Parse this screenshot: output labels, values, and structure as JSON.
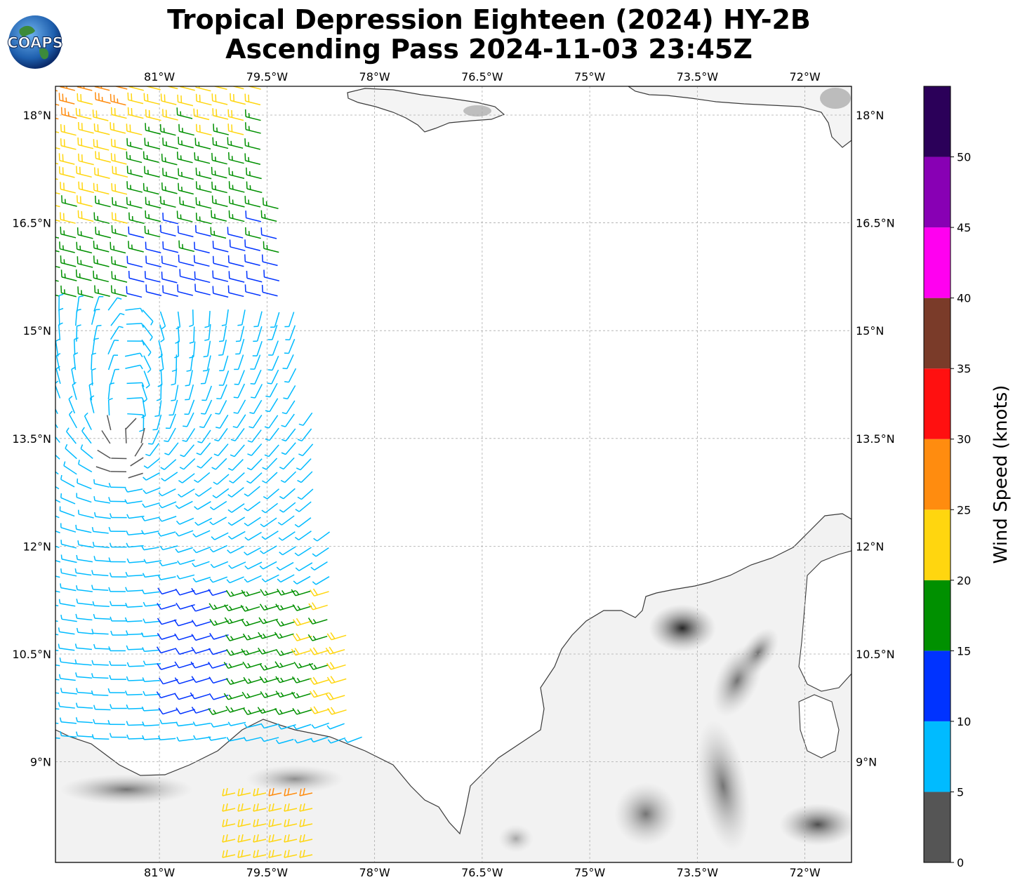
{
  "title": {
    "line1": "Tropical Depression Eighteen (2024) HY-2B",
    "line2": "Ascending Pass 2024-11-03 23:45Z"
  },
  "logo": {
    "text": "COAPS",
    "icon": "globe-icon"
  },
  "map": {
    "lon_labels": [
      "81°W",
      "79.5°W",
      "78°W",
      "76.5°W",
      "75°W",
      "73.5°W",
      "72°W"
    ],
    "lat_labels": [
      "18°N",
      "16.5°N",
      "15°N",
      "13.5°N",
      "12°N",
      "10.5°N",
      "9°N"
    ],
    "lon_values": [
      -81,
      -79.5,
      -78,
      -76.5,
      -75,
      -73.5,
      -72
    ],
    "lat_values": [
      18,
      16.5,
      15,
      13.5,
      12,
      10.5,
      9
    ],
    "extent": {
      "lon_min": -82.45,
      "lon_max": -71.35,
      "lat_min": 7.6,
      "lat_max": 18.4
    },
    "gridlines": true
  },
  "colorbar": {
    "label": "Wind Speed (knots)",
    "ticks": [
      "0",
      "5",
      "10",
      "15",
      "20",
      "25",
      "30",
      "35",
      "40",
      "45",
      "50"
    ],
    "bins": [
      {
        "min": 0,
        "max": 5,
        "color": "#555555"
      },
      {
        "min": 5,
        "max": 10,
        "color": "#00bbff"
      },
      {
        "min": 10,
        "max": 15,
        "color": "#0033ff"
      },
      {
        "min": 15,
        "max": 20,
        "color": "#009000"
      },
      {
        "min": 20,
        "max": 25,
        "color": "#ffd60f"
      },
      {
        "min": 25,
        "max": 30,
        "color": "#ff8c0f"
      },
      {
        "min": 30,
        "max": 35,
        "color": "#ff1010"
      },
      {
        "min": 35,
        "max": 40,
        "color": "#7a3b29"
      },
      {
        "min": 40,
        "max": 45,
        "color": "#ff00f0"
      },
      {
        "min": 45,
        "max": 50,
        "color": "#8800b4"
      },
      {
        "min": 50,
        "max": 55,
        "color": "#2b0059"
      }
    ]
  },
  "colors": {
    "coast": "#3a3a3a",
    "grid": "#aaaaaa"
  }
}
